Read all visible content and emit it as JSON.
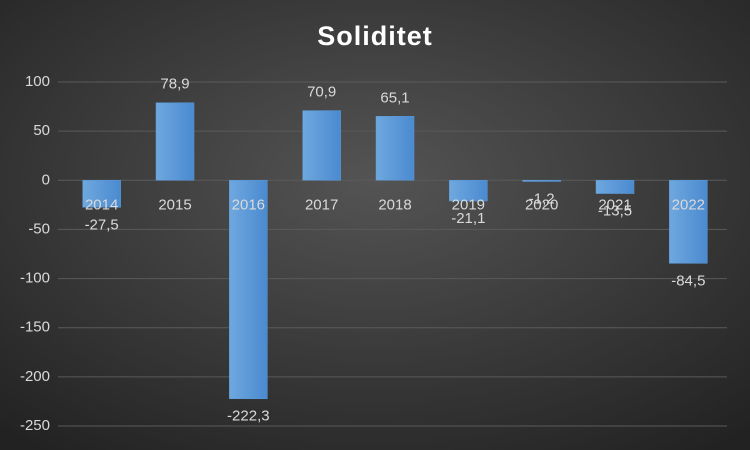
{
  "chart_data": {
    "type": "bar",
    "title": "Soliditet",
    "categories": [
      "2014",
      "2015",
      "2016",
      "2017",
      "2018",
      "2019",
      "2020",
      "2021",
      "2022"
    ],
    "values": [
      -27.5,
      78.9,
      -222.3,
      70.9,
      65.1,
      -21.1,
      -1.2,
      -13.5,
      -84.5
    ],
    "value_labels": [
      "-27,5",
      "78,9",
      "-222,3",
      "70,9",
      "65,1",
      "-21,1",
      "-1,2",
      "-13,5",
      "-84,5"
    ],
    "color": "#5b9bd5",
    "ylim": [
      -250,
      100
    ],
    "yticks": [
      -250,
      -200,
      -150,
      -100,
      -50,
      0,
      50,
      100
    ],
    "grid": true
  }
}
